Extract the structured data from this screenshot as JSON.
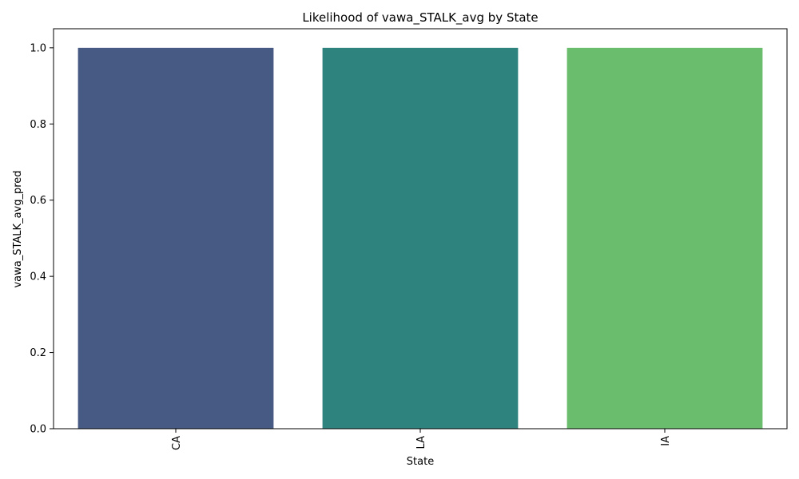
{
  "chart_data": {
    "type": "bar",
    "title": "Likelihood of vawa_STALK_avg by State",
    "xlabel": "State",
    "ylabel": "vawa_STALK_avg_pred",
    "categories": [
      "CA",
      "LA",
      "IA"
    ],
    "values": [
      1.0,
      1.0,
      1.0
    ],
    "colors": [
      "#465a84",
      "#2f837f",
      "#6bbd6e"
    ],
    "ylim": [
      0,
      1.05
    ],
    "yticks": [
      0.0,
      0.2,
      0.4,
      0.6,
      0.8,
      1.0
    ],
    "ytick_labels": [
      "0.0",
      "0.2",
      "0.4",
      "0.6",
      "0.8",
      "1.0"
    ],
    "grid": false,
    "legend": "none"
  }
}
